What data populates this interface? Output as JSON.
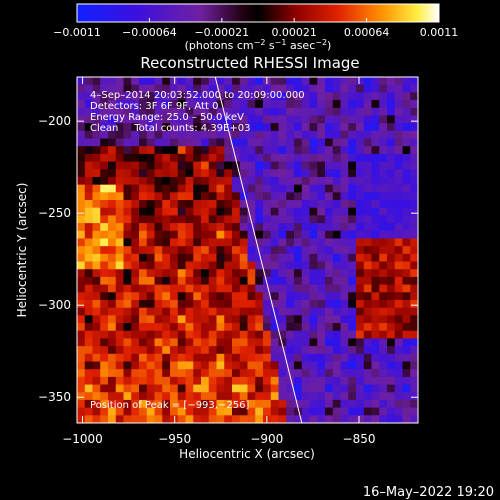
{
  "chart_data": {
    "type": "heatmap",
    "title": "Reconstructed RHESSI Image",
    "xlabel": "Heliocentric X (arcsec)",
    "ylabel": "Heliocentric Y (arcsec)",
    "xlim": [
      -1003,
      -818
    ],
    "ylim": [
      -364,
      -176
    ],
    "x_ticks": [
      -1000,
      -950,
      -900,
      -850
    ],
    "x_tick_labels": [
      "−1000",
      "−950",
      "−900",
      "−850"
    ],
    "y_ticks": [
      -200,
      -250,
      -300,
      -350
    ],
    "y_tick_labels": [
      "−200",
      "−250",
      "−300",
      "−350"
    ],
    "colorbar": {
      "range": [
        -0.0011,
        0.0011
      ],
      "tick_labels": [
        "−0.0011",
        "−0.00064",
        "−0.00021",
        "0.00021",
        "0.00064",
        "0.0011"
      ],
      "units_text": "(photons cm",
      "units_sup1": "−2",
      "units_mid": " s",
      "units_sup2": "−1",
      "units_end": " asec",
      "units_sup3": "−2",
      "units_close": ")"
    },
    "annotations": [
      "4–Sep–2014 20:03:52.000 to 20:09:00.000",
      "Detectors: 3F 6F 9F, Att 0",
      "Energy Range: 25.0 – 50.0 keV",
      "Clean     Total counts: 4.39E+03"
    ],
    "peak_label": "Position of Peak = [−993,−256]",
    "limb_line": [
      [
        -928,
        -176
      ],
      [
        -881,
        -364
      ]
    ]
  },
  "footer": {
    "timestamp": "16–May–2022 19:20"
  },
  "colors": {
    "background": "#000000",
    "text": "#ffffff"
  }
}
